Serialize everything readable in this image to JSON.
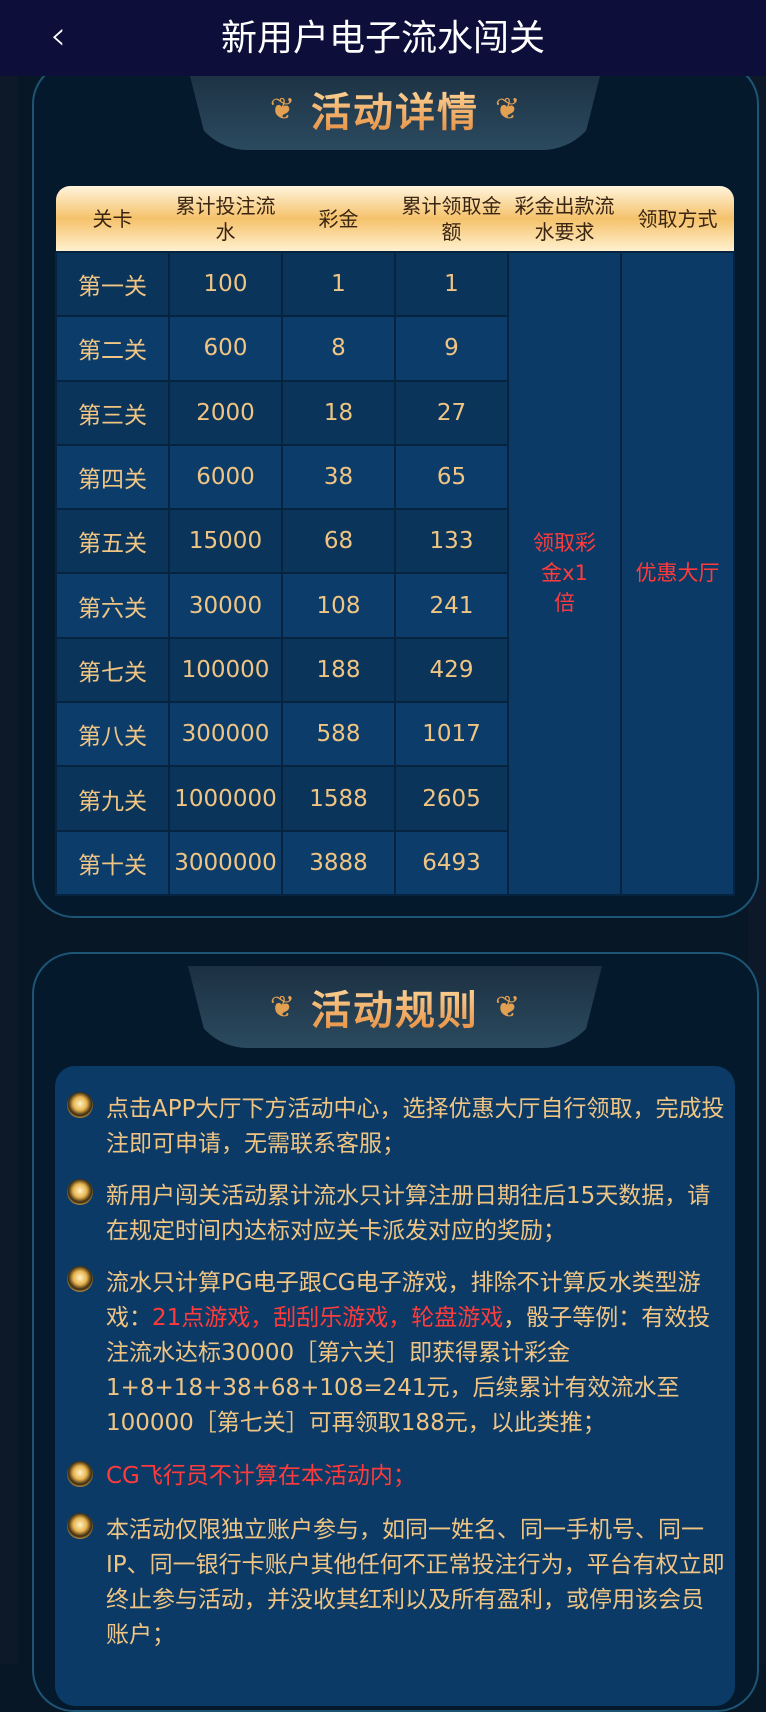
{
  "header": {
    "title": "新用户电子流水闯关",
    "back_icon": "chevron-left-icon"
  },
  "details": {
    "title": "活动详情",
    "columns": [
      "关卡",
      "累计投注流水",
      "彩金",
      "累计领取金额",
      "彩金出款流水要求",
      "领取方式"
    ],
    "rows": [
      [
        "第一关",
        "100",
        "1",
        "1"
      ],
      [
        "第二关",
        "600",
        "8",
        "9"
      ],
      [
        "第三关",
        "2000",
        "18",
        "27"
      ],
      [
        "第四关",
        "6000",
        "38",
        "65"
      ],
      [
        "第五关",
        "15000",
        "68",
        "133"
      ],
      [
        "第六关",
        "30000",
        "108",
        "241"
      ],
      [
        "第七关",
        "100000",
        "188",
        "429"
      ],
      [
        "第八关",
        "300000",
        "588",
        "1017"
      ],
      [
        "第九关",
        "1000000",
        "1588",
        "2605"
      ],
      [
        "第十关",
        "3000000",
        "3888",
        "6493"
      ]
    ],
    "requirement": "领取彩金x1倍",
    "method": "优惠大厅"
  },
  "rules": {
    "title": "活动规则",
    "items": [
      {
        "text": "点击APP大厅下方活动中心，选择优惠大厅自行领取，完成投注即可申请，无需联系客服；"
      },
      {
        "text": "新用户闯关活动累计流水只计算注册日期往后15天数据，请在规定时间内达标对应关卡派发对应的奖励；"
      },
      {
        "pre": "流水只计算PG电子跟CG电子游戏，排除不计算反水类型游戏：",
        "red": "21点游戏，刮刮乐游戏，轮盘游戏",
        "post": "，骰子等例：有效投注流水达标30000［第六关］即获得累计彩金1+8+18+38+68+108=241元，后续累计有效流水至100000［第七关］可再领取188元，以此类推；"
      },
      {
        "red": "CG飞行员不计算在本活动内；"
      },
      {
        "text": "本活动仅限独立账户参与，如同一姓名、同一手机号、同一IP、同一银行卡账户其他任何不正常投注行为，平台有权立即终止参与活动，并没收其红利以及所有盈利，或停用该会员账户；"
      }
    ]
  },
  "colors": {
    "gold": "#f0c584",
    "red": "#ff3b3b",
    "header_bg": "#0d0f3a",
    "cell": "#0b3a66"
  }
}
